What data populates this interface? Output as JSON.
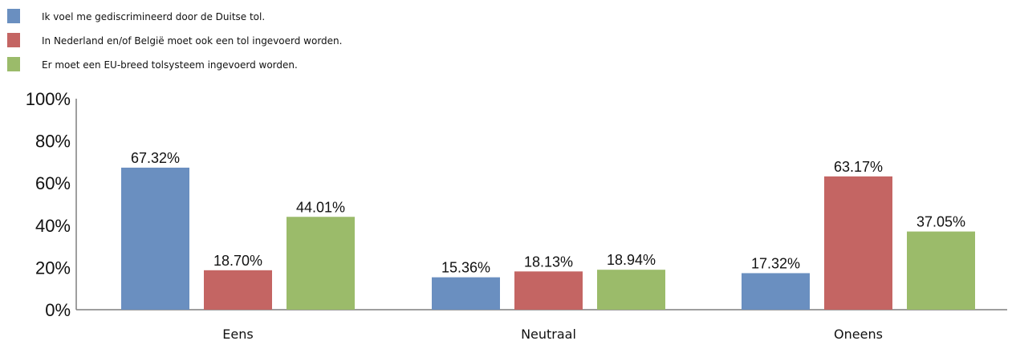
{
  "chart_data": {
    "type": "bar",
    "title": "",
    "xlabel": "",
    "ylabel": "",
    "ylim": [
      0,
      100
    ],
    "y_ticks": [
      "0%",
      "20%",
      "40%",
      "60%",
      "80%",
      "100%"
    ],
    "categories": [
      "Eens",
      "Neutraal",
      "Oneens"
    ],
    "series": [
      {
        "name": "Ik voel me gediscrimineerd door de Duitse tol.",
        "color": "#6a8fc0",
        "values": [
          67.32,
          15.36,
          17.32
        ],
        "labels": [
          "67.32%",
          "15.36%",
          "17.32%"
        ]
      },
      {
        "name": "In Nederland en/of België moet ook een tol ingevoerd worden.",
        "color": "#c46563",
        "values": [
          18.7,
          18.13,
          63.17
        ],
        "labels": [
          "18.70%",
          "18.13%",
          "63.17%"
        ]
      },
      {
        "name": "Er moet een EU-breed tolsysteem  ingevoerd worden.",
        "color": "#9bbb6a",
        "values": [
          44.01,
          18.94,
          37.05
        ],
        "labels": [
          "44.01%",
          "18.94%",
          "37.05%"
        ]
      }
    ],
    "grid": false,
    "legend_position": "top-left"
  }
}
